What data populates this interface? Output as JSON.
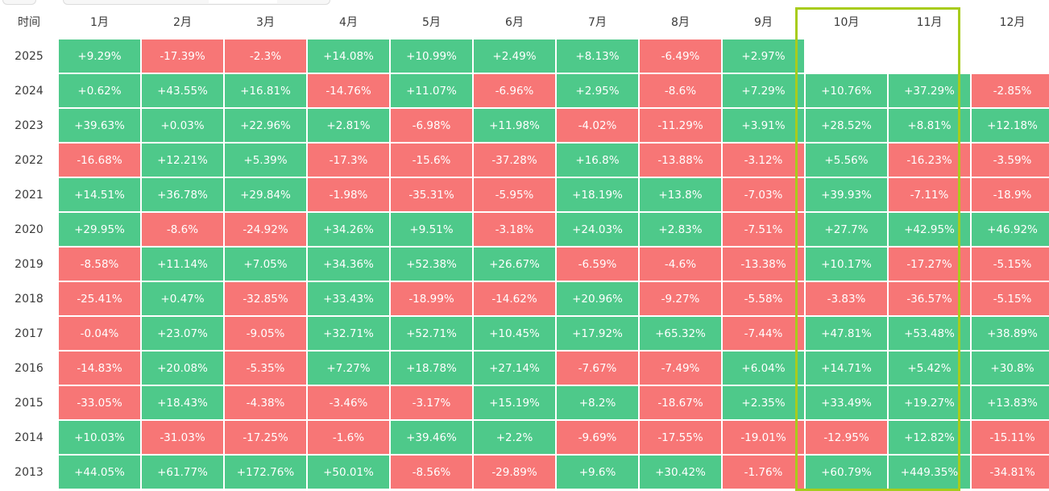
{
  "colors": {
    "up": "#4ec98a",
    "down": "#f77676",
    "highlight": "#a8cc1c"
  },
  "chart_data": {
    "type": "heatmap",
    "corner_label": "时间",
    "columns": [
      "1月",
      "2月",
      "3月",
      "4月",
      "5月",
      "6月",
      "7月",
      "8月",
      "9月",
      "10月",
      "11月",
      "12月"
    ],
    "highlighted_columns": [
      "10月",
      "11月"
    ],
    "rows": [
      {
        "year": "2025",
        "values": [
          "+9.29%",
          "-17.39%",
          "-2.3%",
          "+14.08%",
          "+10.99%",
          "+2.49%",
          "+8.13%",
          "-6.49%",
          "+2.97%",
          "",
          "",
          ""
        ]
      },
      {
        "year": "2024",
        "values": [
          "+0.62%",
          "+43.55%",
          "+16.81%",
          "-14.76%",
          "+11.07%",
          "-6.96%",
          "+2.95%",
          "-8.6%",
          "+7.29%",
          "+10.76%",
          "+37.29%",
          "-2.85%"
        ]
      },
      {
        "year": "2023",
        "values": [
          "+39.63%",
          "+0.03%",
          "+22.96%",
          "+2.81%",
          "-6.98%",
          "+11.98%",
          "-4.02%",
          "-11.29%",
          "+3.91%",
          "+28.52%",
          "+8.81%",
          "+12.18%"
        ]
      },
      {
        "year": "2022",
        "values": [
          "-16.68%",
          "+12.21%",
          "+5.39%",
          "-17.3%",
          "-15.6%",
          "-37.28%",
          "+16.8%",
          "-13.88%",
          "-3.12%",
          "+5.56%",
          "-16.23%",
          "-3.59%"
        ]
      },
      {
        "year": "2021",
        "values": [
          "+14.51%",
          "+36.78%",
          "+29.84%",
          "-1.98%",
          "-35.31%",
          "-5.95%",
          "+18.19%",
          "+13.8%",
          "-7.03%",
          "+39.93%",
          "-7.11%",
          "-18.9%"
        ]
      },
      {
        "year": "2020",
        "values": [
          "+29.95%",
          "-8.6%",
          "-24.92%",
          "+34.26%",
          "+9.51%",
          "-3.18%",
          "+24.03%",
          "+2.83%",
          "-7.51%",
          "+27.7%",
          "+42.95%",
          "+46.92%"
        ]
      },
      {
        "year": "2019",
        "values": [
          "-8.58%",
          "+11.14%",
          "+7.05%",
          "+34.36%",
          "+52.38%",
          "+26.67%",
          "-6.59%",
          "-4.6%",
          "-13.38%",
          "+10.17%",
          "-17.27%",
          "-5.15%"
        ]
      },
      {
        "year": "2018",
        "values": [
          "-25.41%",
          "+0.47%",
          "-32.85%",
          "+33.43%",
          "-18.99%",
          "-14.62%",
          "+20.96%",
          "-9.27%",
          "-5.58%",
          "-3.83%",
          "-36.57%",
          "-5.15%"
        ]
      },
      {
        "year": "2017",
        "values": [
          "-0.04%",
          "+23.07%",
          "-9.05%",
          "+32.71%",
          "+52.71%",
          "+10.45%",
          "+17.92%",
          "+65.32%",
          "-7.44%",
          "+47.81%",
          "+53.48%",
          "+38.89%"
        ]
      },
      {
        "year": "2016",
        "values": [
          "-14.83%",
          "+20.08%",
          "-5.35%",
          "+7.27%",
          "+18.78%",
          "+27.14%",
          "-7.67%",
          "-7.49%",
          "+6.04%",
          "+14.71%",
          "+5.42%",
          "+30.8%"
        ]
      },
      {
        "year": "2015",
        "values": [
          "-33.05%",
          "+18.43%",
          "-4.38%",
          "-3.46%",
          "-3.17%",
          "+15.19%",
          "+8.2%",
          "-18.67%",
          "+2.35%",
          "+33.49%",
          "+19.27%",
          "+13.83%"
        ]
      },
      {
        "year": "2014",
        "values": [
          "+10.03%",
          "-31.03%",
          "-17.25%",
          "-1.6%",
          "+39.46%",
          "+2.2%",
          "-9.69%",
          "-17.55%",
          "-19.01%",
          "-12.95%",
          "+12.82%",
          "-15.11%"
        ]
      },
      {
        "year": "2013",
        "values": [
          "+44.05%",
          "+61.77%",
          "+172.76%",
          "+50.01%",
          "-8.56%",
          "-29.89%",
          "+9.6%",
          "+30.42%",
          "-1.76%",
          "+60.79%",
          "+449.35%",
          "-34.81%"
        ]
      }
    ]
  }
}
